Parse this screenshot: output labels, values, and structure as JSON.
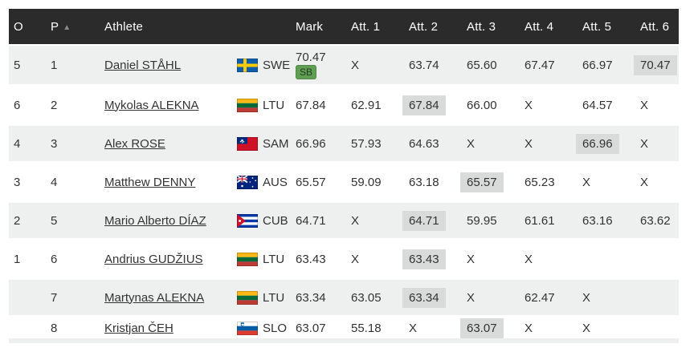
{
  "table": {
    "header": {
      "o_label": "O",
      "p_label": "P",
      "p_sort_icon": "triangle-up",
      "p_sort_glyph": "▲",
      "athlete_label": "Athlete",
      "mark_label": "Mark",
      "attempt_labels": [
        "Att. 1",
        "Att. 2",
        "Att. 3",
        "Att. 4",
        "Att. 5",
        "Att. 6"
      ]
    },
    "rows": [
      {
        "order": "5",
        "place": "1",
        "athlete": "Daniel STÅHL",
        "country": "SWE",
        "mark": "70.47",
        "mark_badge": "SB",
        "attempts": [
          "X",
          "63.74",
          "65.60",
          "67.47",
          "66.97",
          "70.47"
        ],
        "best_attempt_index": 5
      },
      {
        "order": "6",
        "place": "2",
        "athlete": "Mykolas ALEKNA",
        "country": "LTU",
        "mark": "67.84",
        "attempts": [
          "62.91",
          "67.84",
          "66.00",
          "X",
          "64.57",
          "X"
        ],
        "best_attempt_index": 1
      },
      {
        "order": "4",
        "place": "3",
        "athlete": "Alex ROSE",
        "country": "SAM",
        "mark": "66.96",
        "attempts": [
          "57.93",
          "64.63",
          "X",
          "X",
          "66.96",
          "X"
        ],
        "best_attempt_index": 4
      },
      {
        "order": "3",
        "place": "4",
        "athlete": "Matthew DENNY",
        "country": "AUS",
        "mark": "65.57",
        "attempts": [
          "59.09",
          "63.18",
          "65.57",
          "65.23",
          "X",
          "X"
        ],
        "best_attempt_index": 2
      },
      {
        "order": "2",
        "place": "5",
        "athlete": "Mario Alberto DÍAZ",
        "country": "CUB",
        "mark": "64.71",
        "attempts": [
          "X",
          "64.71",
          "59.95",
          "61.61",
          "63.16",
          "63.62"
        ],
        "best_attempt_index": 1
      },
      {
        "order": "1",
        "place": "6",
        "athlete": "Andrius GUDŽIUS",
        "country": "LTU",
        "mark": "63.43",
        "attempts": [
          "X",
          "63.43",
          "X",
          "X",
          "",
          ""
        ],
        "best_attempt_index": 1
      },
      {
        "order": "",
        "place": "7",
        "athlete": "Martynas ALEKNA",
        "country": "LTU",
        "mark": "63.34",
        "attempts": [
          "63.05",
          "63.34",
          "X",
          "62.47",
          "X",
          ""
        ],
        "best_attempt_index": 1
      },
      {
        "order": "",
        "place": "8",
        "athlete": "Kristjan ČEH",
        "country": "SLO",
        "mark": "63.07",
        "attempts": [
          "55.18",
          "X",
          "63.07",
          "X",
          "X",
          ""
        ],
        "best_attempt_index": 2
      }
    ],
    "colors": {
      "header_background": "#2b2b2b",
      "header_text": "#ffffff",
      "stripe_row": "#eef0f0",
      "white_row": "#ffffff",
      "best_highlight": "#d8dbda",
      "sb_badge_green": "#5f9e53",
      "body_text": "#333333",
      "sort_arrow_gray": "#8c8c8c"
    }
  }
}
